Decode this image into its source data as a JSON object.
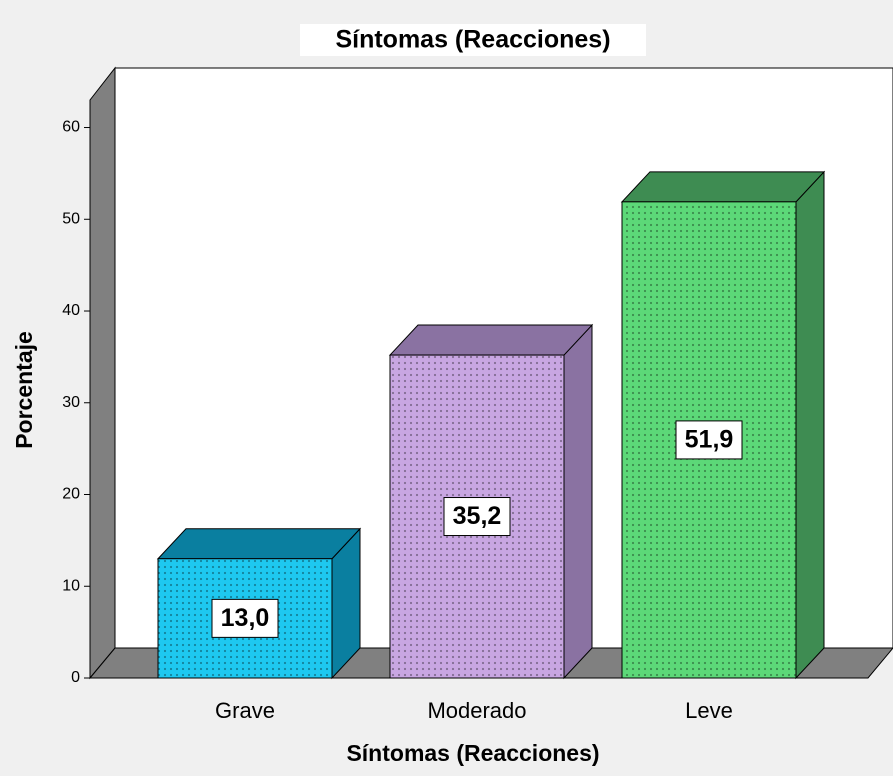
{
  "chart_data": {
    "type": "bar3d",
    "title": "Síntomas (Reacciones)",
    "x_label": "Síntomas (Reacciones)",
    "y_label": "Porcentaje",
    "categories": [
      "Grave",
      "Moderado",
      "Leve"
    ],
    "values": [
      13.0,
      35.2,
      51.9
    ],
    "value_labels": [
      "13,0",
      "35,2",
      "51,9"
    ],
    "colors": [
      "#1ec8f0",
      "#c8a6e2",
      "#5cd878"
    ],
    "side_colors": [
      "#0a7fa0",
      "#8a72a2",
      "#3e8c52"
    ],
    "ylim": [
      0,
      63
    ],
    "yticks": [
      0,
      10,
      20,
      30,
      40,
      50,
      60
    ],
    "grid": false
  }
}
